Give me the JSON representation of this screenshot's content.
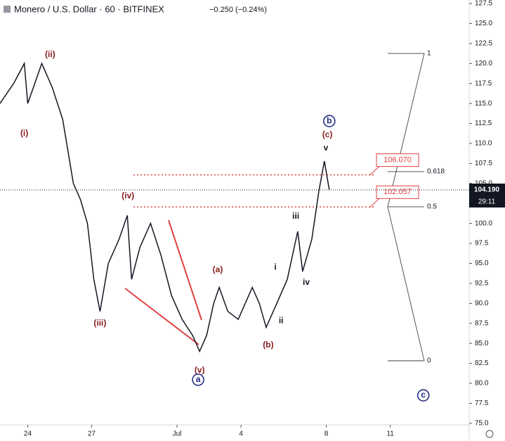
{
  "header": {
    "symbol": "Monero / U.S. Dollar · 60 · BITFINEX",
    "change": "−0.250 (−0.24%)"
  },
  "chart_data": {
    "type": "line",
    "color": "#131722",
    "x": [
      -1.3,
      -0.66,
      -0.16,
      0,
      0.66,
      1.15,
      1.64,
      2.14,
      2.47,
      2.8,
      3.1,
      3.39,
      3.78,
      4.28,
      4.67,
      4.87,
      5.26,
      5.76,
      6.25,
      6.74,
      7.24,
      7.73,
      8.06,
      8.39,
      8.72,
      8.98,
      9.38,
      9.87,
      10.53,
      10.86,
      11.18,
      11.68,
      12.17,
      12.66,
      12.89,
      13.32,
      13.65,
      13.91,
      14.14
    ],
    "values": [
      115,
      117.5,
      120,
      115,
      120,
      117,
      113,
      105,
      103,
      100,
      93,
      89,
      95,
      98,
      101,
      93,
      97,
      100,
      96,
      91,
      88,
      86,
      84,
      86,
      90,
      92,
      89,
      88,
      92,
      90,
      87,
      90,
      93,
      99,
      94,
      98,
      104,
      107.8,
      104.19
    ],
    "xlim": [
      -1.3,
      20.7
    ],
    "ylim": [
      74.9,
      127.94
    ],
    "xticks": [
      {
        "value": 0,
        "label": "24"
      },
      {
        "value": 3,
        "label": "27"
      },
      {
        "value": 7,
        "label": "Jul"
      },
      {
        "value": 10,
        "label": "4"
      },
      {
        "value": 14,
        "label": "8"
      },
      {
        "value": 17,
        "label": "11"
      }
    ],
    "yticks": [
      {
        "value": 75,
        "label": "75.0"
      },
      77.5,
      {
        "value": 80,
        "label": "80.0"
      },
      82.5,
      {
        "value": 85,
        "label": "85.0"
      },
      87.5,
      {
        "value": 90,
        "label": "90.0"
      },
      92.5,
      {
        "value": 95,
        "label": "95.0"
      },
      97.5,
      {
        "value": 100,
        "label": "100.0"
      },
      102.5,
      {
        "value": 105,
        "label": "105.0"
      },
      107.5,
      {
        "value": 110,
        "label": "110.0"
      },
      112.5,
      {
        "value": 115,
        "label": "115.0"
      },
      117.5,
      {
        "value": 120,
        "label": "120.0"
      },
      122.5,
      {
        "value": 125,
        "label": "125.0"
      },
      127.5
    ],
    "last_price": {
      "value": 104.19,
      "label": "104.190"
    },
    "countdown": "29:11",
    "fib_levels": [
      {
        "ratio": 1,
        "price": 121.26
      },
      {
        "ratio": 0.618,
        "price": 106.48
      },
      {
        "ratio": 0.5,
        "price": 102.08
      },
      {
        "ratio": 0,
        "price": 82.83
      }
    ],
    "targets": [
      {
        "value": 106.07,
        "label": "106.070"
      },
      {
        "value": 102.057,
        "label": "102.057"
      }
    ],
    "wave_labels": [
      {
        "text": "(ii)",
        "x": 1.05,
        "y": 121.08,
        "style": "red"
      },
      {
        "text": "(i)",
        "x": -0.16,
        "y": 111.23,
        "style": "red"
      },
      {
        "text": "(iii)",
        "x": 3.39,
        "y": 87.49,
        "style": "red"
      },
      {
        "text": "(iv)",
        "x": 4.7,
        "y": 103.4,
        "style": "red"
      },
      {
        "text": "(v)",
        "x": 8.06,
        "y": 81.59,
        "style": "red"
      },
      {
        "text": "(a)",
        "x": 8.91,
        "y": 94.17,
        "style": "red"
      },
      {
        "text": "(b)",
        "x": 11.28,
        "y": 84.76,
        "style": "red"
      },
      {
        "text": "(c)",
        "x": 14.05,
        "y": 111.06,
        "style": "red"
      },
      {
        "text": "v",
        "x": 13.98,
        "y": 109.4,
        "style": "black"
      },
      {
        "text": "iii",
        "x": 12.57,
        "y": 100.85,
        "style": "black"
      },
      {
        "text": "i",
        "x": 11.61,
        "y": 94.5,
        "style": "black"
      },
      {
        "text": "iv",
        "x": 13.06,
        "y": 92.6,
        "style": "black"
      },
      {
        "text": "ii",
        "x": 11.88,
        "y": 87.8,
        "style": "black"
      },
      {
        "text": "a",
        "x": 7.99,
        "y": 80.45,
        "style": "circle"
      },
      {
        "text": "b",
        "x": 14.14,
        "y": 112.8,
        "style": "circle"
      },
      {
        "text": "c",
        "x": 18.55,
        "y": 78.5,
        "style": "circle"
      }
    ]
  }
}
